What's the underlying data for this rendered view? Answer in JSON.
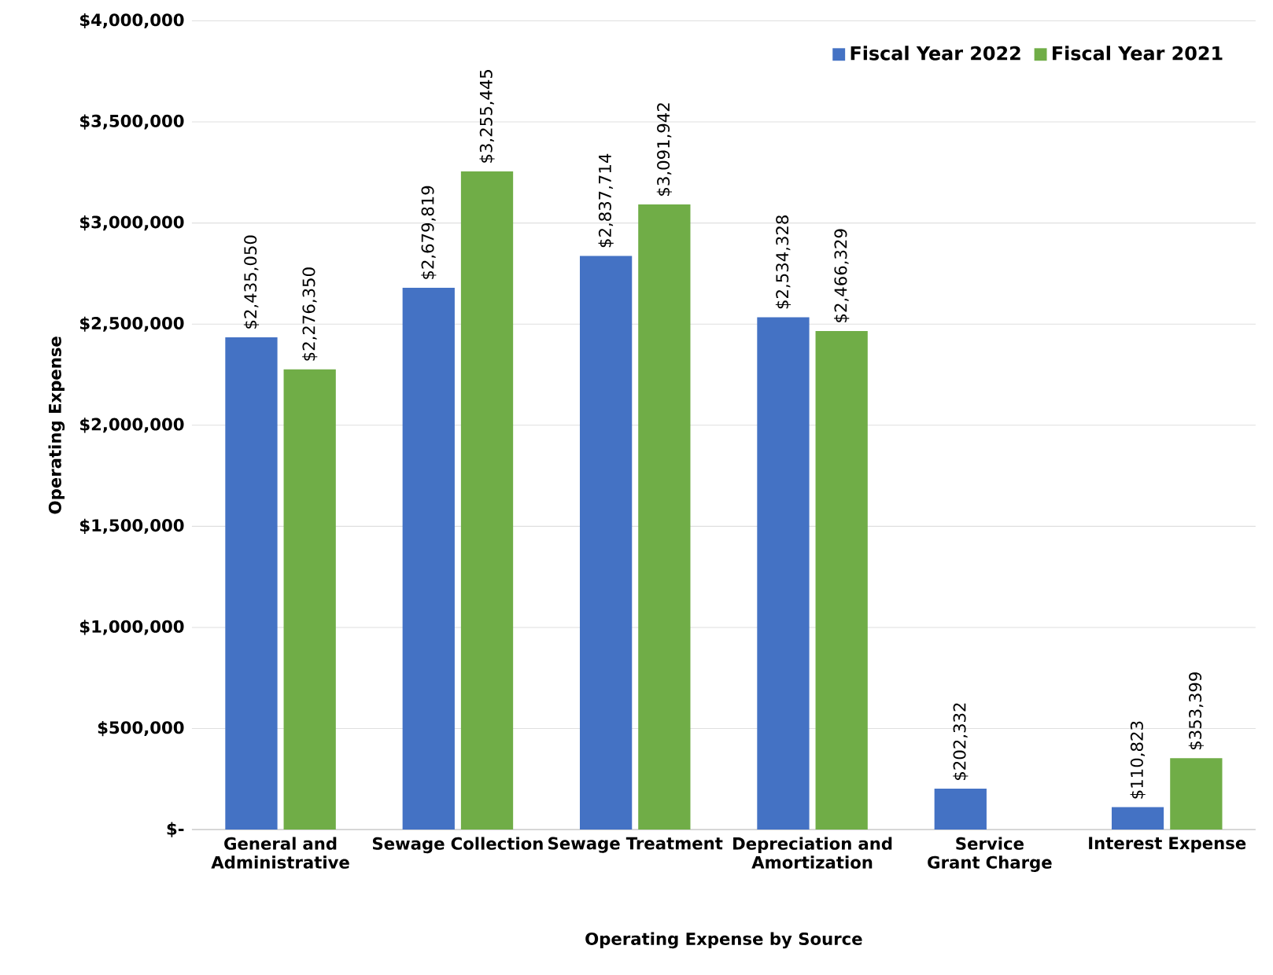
{
  "chart_data": {
    "type": "bar",
    "xlabel": "Operating Expense by Source",
    "ylabel": "Operating Expense",
    "categories": [
      "General and Administrative",
      "Sewage Collection",
      "Sewage Treatment",
      "Depreciation and Amortization",
      "Service Grant Charge",
      "Interest Expense"
    ],
    "series": [
      {
        "name": "Fiscal Year 2022",
        "color": "#4472c4",
        "values": [
          2435050,
          2679819,
          2837714,
          2534328,
          202332,
          110823
        ],
        "value_labels": [
          "$2,435,050",
          "$2,679,819",
          "$2,837,714",
          "$2,534,328",
          "$202,332",
          "$110,823"
        ]
      },
      {
        "name": "Fiscal Year 2021",
        "color": "#70ad47",
        "values": [
          2276350,
          3255445,
          3091942,
          2466329,
          null,
          353399
        ],
        "value_labels": [
          "$2,276,350",
          "$3,255,445",
          "$3,091,942",
          "$2,466,329",
          null,
          "$353,399"
        ]
      }
    ],
    "ylim": [
      0,
      4000000
    ],
    "yticks": [
      {
        "value": 0,
        "label": "$-"
      },
      {
        "value": 500000,
        "label": "$500,000"
      },
      {
        "value": 1000000,
        "label": "$1,000,000"
      },
      {
        "value": 1500000,
        "label": "$1,500,000"
      },
      {
        "value": 2000000,
        "label": "$2,000,000"
      },
      {
        "value": 2500000,
        "label": "$2,500,000"
      },
      {
        "value": 3000000,
        "label": "$3,000,000"
      },
      {
        "value": 3500000,
        "label": "$3,500,000"
      },
      {
        "value": 4000000,
        "label": "$4,000,000"
      }
    ],
    "grid": "y",
    "legend": "top right"
  }
}
